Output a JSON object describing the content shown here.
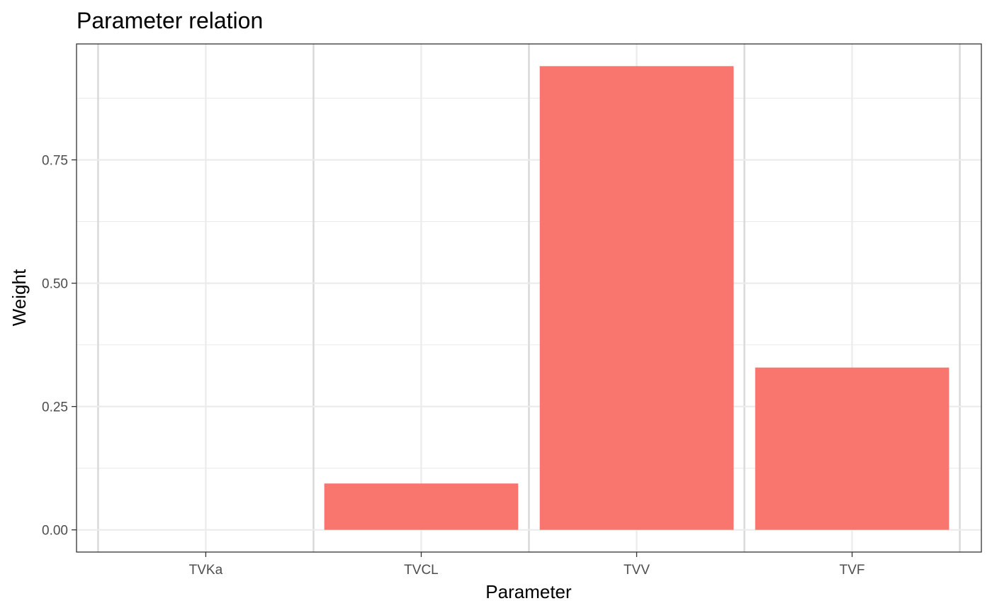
{
  "chart_data": {
    "type": "bar",
    "title": "Parameter relation",
    "xlabel": "Parameter",
    "ylabel": "Weight",
    "categories": [
      "TVKa",
      "TVCL",
      "TVV",
      "TVF"
    ],
    "values": [
      0.0,
      0.094,
      0.94,
      0.329
    ],
    "ylim": [
      -0.045,
      0.985
    ],
    "yticks": [
      0.0,
      0.25,
      0.5,
      0.75
    ],
    "ytick_labels": [
      "0.00",
      "0.25",
      "0.50",
      "0.75"
    ],
    "grid": true,
    "bar_color": "#F8766D",
    "legend": "none"
  }
}
